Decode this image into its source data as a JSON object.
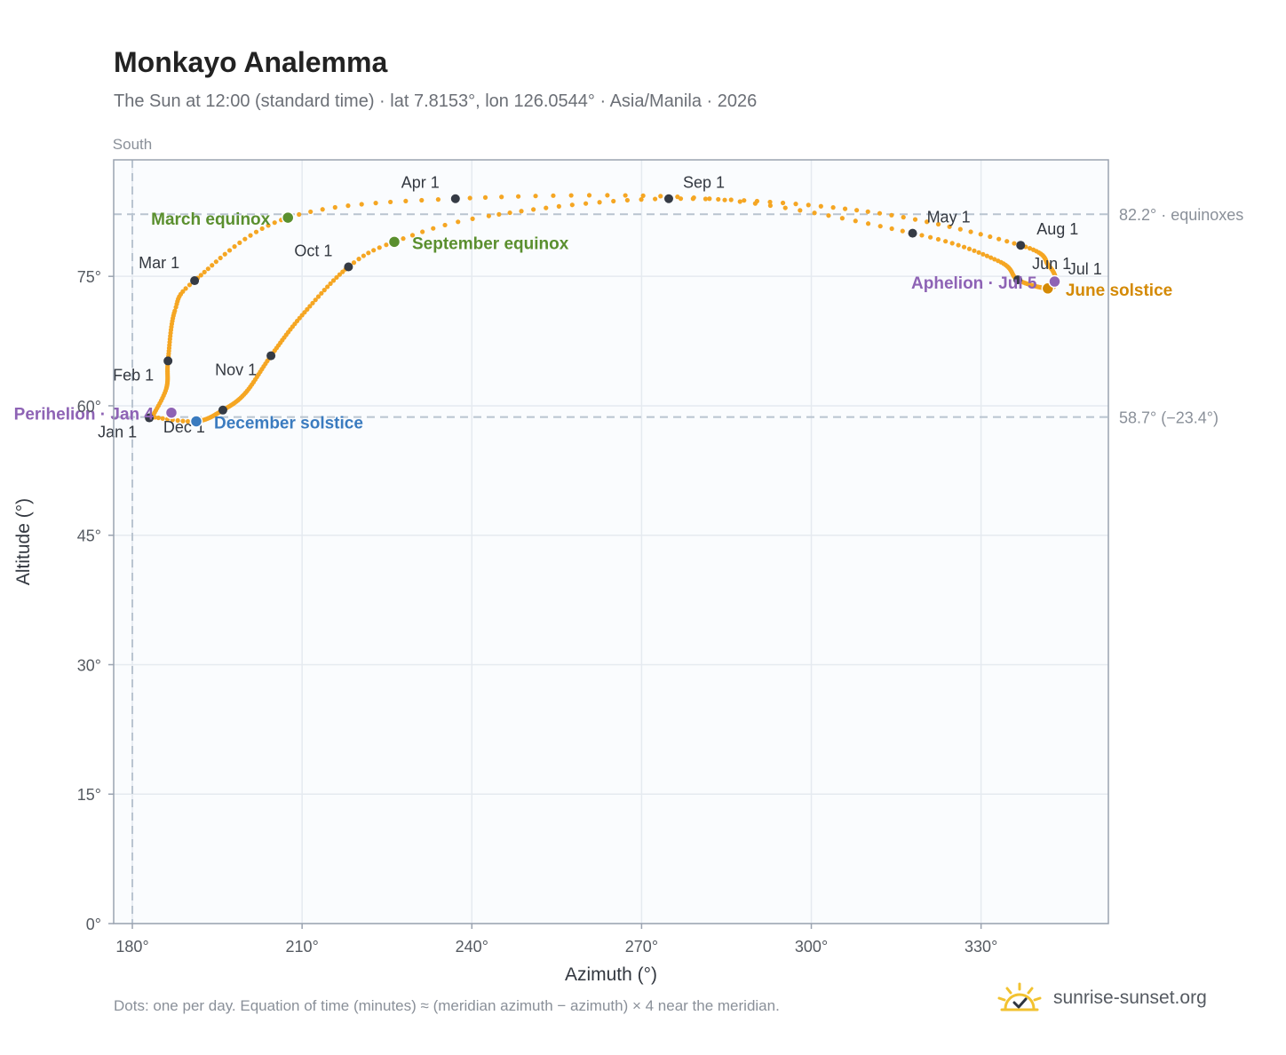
{
  "title": "Monkayo Analemma",
  "subtitle": "The Sun at 12:00 (standard time) · lat 7.8153°, lon 126.0544° · Asia/Manila · 2026",
  "footnote": "Dots: one per day. Equation of time (minutes) ≈ (meridian azimuth − azimuth) × 4 near the meridian.",
  "brand": "sunrise-sunset.org",
  "colors": {
    "path": "#f5a623",
    "month_marker": "#353b45",
    "equinox": "#5a8f2e",
    "december_solstice": "#3a7bbf",
    "june_solstice": "#d48a06",
    "apsis": "#8e63b5",
    "reference_line": "#b9c4d0",
    "plot_background": "#fafcfe",
    "grid": "#e5eaf0"
  },
  "chart_data": {
    "type": "scatter",
    "title": "Monkayo Analemma",
    "xlabel": "Azimuth (°)",
    "ylabel": "Altitude (°)",
    "xlim": [
      176.7,
      352.5
    ],
    "ylim": [
      0,
      88.5
    ],
    "xticks": [
      180,
      210,
      240,
      270,
      300,
      330
    ],
    "xtick_labels": [
      "180°",
      "210°",
      "240°",
      "270°",
      "300°",
      "330°"
    ],
    "yticks": [
      0,
      15,
      30,
      45,
      60,
      75
    ],
    "ytick_labels": [
      "0°",
      "15°",
      "30°",
      "45°",
      "60°",
      "75°"
    ],
    "grid": true,
    "meridian": {
      "azimuth": 180,
      "label": "South"
    },
    "reference_lines": [
      {
        "altitude": 82.2,
        "label": "82.2° · equinoxes"
      },
      {
        "altitude": 58.7,
        "label": "58.7° (−23.4°)"
      }
    ],
    "path_anchors": [
      {
        "day": 1,
        "az": 183.5,
        "alt": 58.7
      },
      {
        "day": 14,
        "az": 186.0,
        "alt": 62.0
      },
      {
        "day": 32,
        "az": 186.3,
        "alt": 65.2
      },
      {
        "day": 50,
        "az": 187.5,
        "alt": 71.0
      },
      {
        "day": 60,
        "az": 191.0,
        "alt": 74.5
      },
      {
        "day": 79,
        "az": 207.5,
        "alt": 81.8
      },
      {
        "day": 91,
        "az": 237.1,
        "alt": 84.0
      },
      {
        "day": 106,
        "az": 282.0,
        "alt": 84.0
      },
      {
        "day": 121,
        "az": 317.9,
        "alt": 80.0
      },
      {
        "day": 136,
        "az": 333.0,
        "alt": 76.8
      },
      {
        "day": 152,
        "az": 336.5,
        "alt": 74.6
      },
      {
        "day": 172,
        "az": 341.8,
        "alt": 73.6
      },
      {
        "day": 182,
        "az": 343.2,
        "alt": 74.4
      },
      {
        "day": 196,
        "az": 342.0,
        "alt": 76.2
      },
      {
        "day": 213,
        "az": 337.0,
        "alt": 78.6
      },
      {
        "day": 228,
        "az": 310.0,
        "alt": 82.5
      },
      {
        "day": 244,
        "az": 274.8,
        "alt": 84.0
      },
      {
        "day": 258,
        "az": 243.0,
        "alt": 82.0
      },
      {
        "day": 266,
        "az": 226.3,
        "alt": 79.0
      },
      {
        "day": 274,
        "az": 218.2,
        "alt": 76.1
      },
      {
        "day": 290,
        "az": 210.0,
        "alt": 70.5
      },
      {
        "day": 305,
        "az": 204.5,
        "alt": 65.8
      },
      {
        "day": 320,
        "az": 200.0,
        "alt": 61.5
      },
      {
        "day": 335,
        "az": 196.0,
        "alt": 59.5
      },
      {
        "day": 355,
        "az": 191.3,
        "alt": 58.2
      },
      {
        "day": 365,
        "az": 183.5,
        "alt": 58.7
      }
    ],
    "month_markers": [
      {
        "label": "Jan 1",
        "az": 183.0,
        "alt": 58.6,
        "anchor": "end",
        "dx": -14,
        "dy": 22
      },
      {
        "label": "Feb 1",
        "az": 186.3,
        "alt": 65.2,
        "anchor": "end",
        "dx": -16,
        "dy": 22
      },
      {
        "label": "Mar 1",
        "az": 191.0,
        "alt": 74.5,
        "anchor": "end",
        "dx": -17,
        "dy": -14
      },
      {
        "label": "Apr 1",
        "az": 237.1,
        "alt": 84.0,
        "anchor": "end",
        "dx": -18,
        "dy": -12
      },
      {
        "label": "May 1",
        "az": 317.9,
        "alt": 80.0,
        "anchor": "start",
        "dx": 16,
        "dy": -12
      },
      {
        "label": "Jun 1",
        "az": 336.5,
        "alt": 74.6,
        "anchor": "start",
        "dx": 16,
        "dy": -12
      },
      {
        "label": "Jul 1",
        "az": 343.2,
        "alt": 74.4,
        "anchor": "start",
        "dx": 14,
        "dy": -8
      },
      {
        "label": "Aug 1",
        "az": 337.0,
        "alt": 78.6,
        "anchor": "start",
        "dx": 18,
        "dy": -12
      },
      {
        "label": "Sep 1",
        "az": 274.8,
        "alt": 84.0,
        "anchor": "start",
        "dx": 16,
        "dy": -12
      },
      {
        "label": "Oct 1",
        "az": 218.2,
        "alt": 76.1,
        "anchor": "end",
        "dx": -18,
        "dy": -12
      },
      {
        "label": "Nov 1",
        "az": 204.5,
        "alt": 65.8,
        "anchor": "end",
        "dx": -16,
        "dy": 22
      },
      {
        "label": "Dec 1",
        "az": 196.0,
        "alt": 59.5,
        "anchor": "end",
        "dx": -20,
        "dy": 25
      }
    ],
    "events": [
      {
        "label": "March equinox",
        "az": 207.5,
        "alt": 81.8,
        "color_key": "equinox",
        "anchor": "end",
        "dx": -20,
        "dy": 8
      },
      {
        "label": "September equinox",
        "az": 226.3,
        "alt": 79.0,
        "color_key": "equinox",
        "anchor": "start",
        "dx": 20,
        "dy": 8
      },
      {
        "label": "December solstice",
        "az": 191.3,
        "alt": 58.2,
        "color_key": "december_solstice",
        "anchor": "start",
        "dx": 20,
        "dy": 8
      },
      {
        "label": "June solstice",
        "az": 341.8,
        "alt": 73.6,
        "color_key": "june_solstice",
        "anchor": "start",
        "dx": 20,
        "dy": 8
      },
      {
        "label": "Perihelion · Jan 4",
        "az": 186.9,
        "alt": 59.2,
        "color_key": "apsis",
        "anchor": "end",
        "dx": -20,
        "dy": 8
      },
      {
        "label": "Aphelion · Jul 5",
        "az": 343.0,
        "alt": 74.4,
        "color_key": "apsis",
        "anchor": "end",
        "dx": -20,
        "dy": 8
      }
    ]
  }
}
